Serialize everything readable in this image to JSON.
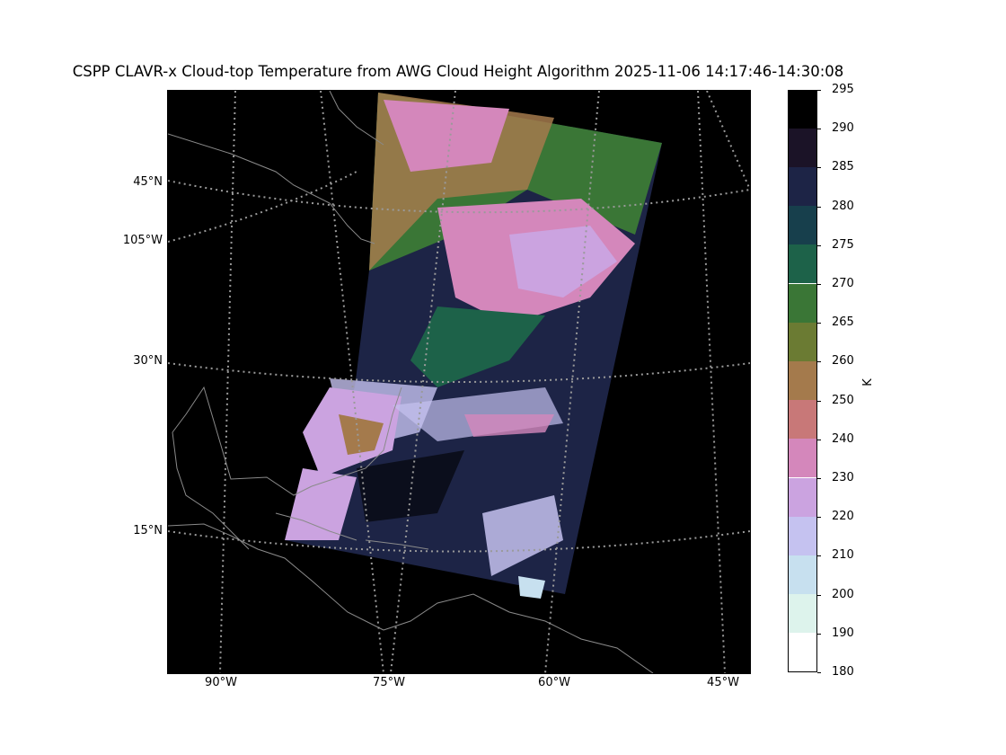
{
  "title": "CSPP CLAVR-x Cloud-top Temperature from AWG Cloud Height Algorithm 2025-11-06 14:17:46-14:30:08",
  "map": {
    "lat_labels": [
      "45°N",
      "105°W",
      "30°N",
      "15°N"
    ],
    "lon_labels": [
      "90°W",
      "75°W",
      "60°W",
      "45°W"
    ],
    "background_color": "#000000",
    "coastline_color": "#8a8a8a",
    "gridline_color": "#9a9a9a",
    "gridline_style": "dotted"
  },
  "colorbar": {
    "unit": "K",
    "ticks": [
      "295",
      "290",
      "285",
      "280",
      "275",
      "270",
      "265",
      "260",
      "250",
      "240",
      "230",
      "220",
      "210",
      "200",
      "190",
      "180"
    ],
    "colors_top_to_bottom": [
      "#000000",
      "#1b1327",
      "#1d2446",
      "#173f4c",
      "#1d6249",
      "#3a7636",
      "#6b7b33",
      "#a47a4c",
      "#c87878",
      "#d487bb",
      "#cba3e0",
      "#c5c2f0",
      "#c7e0ef",
      "#ddf3ec",
      "#ffffff"
    ]
  }
}
